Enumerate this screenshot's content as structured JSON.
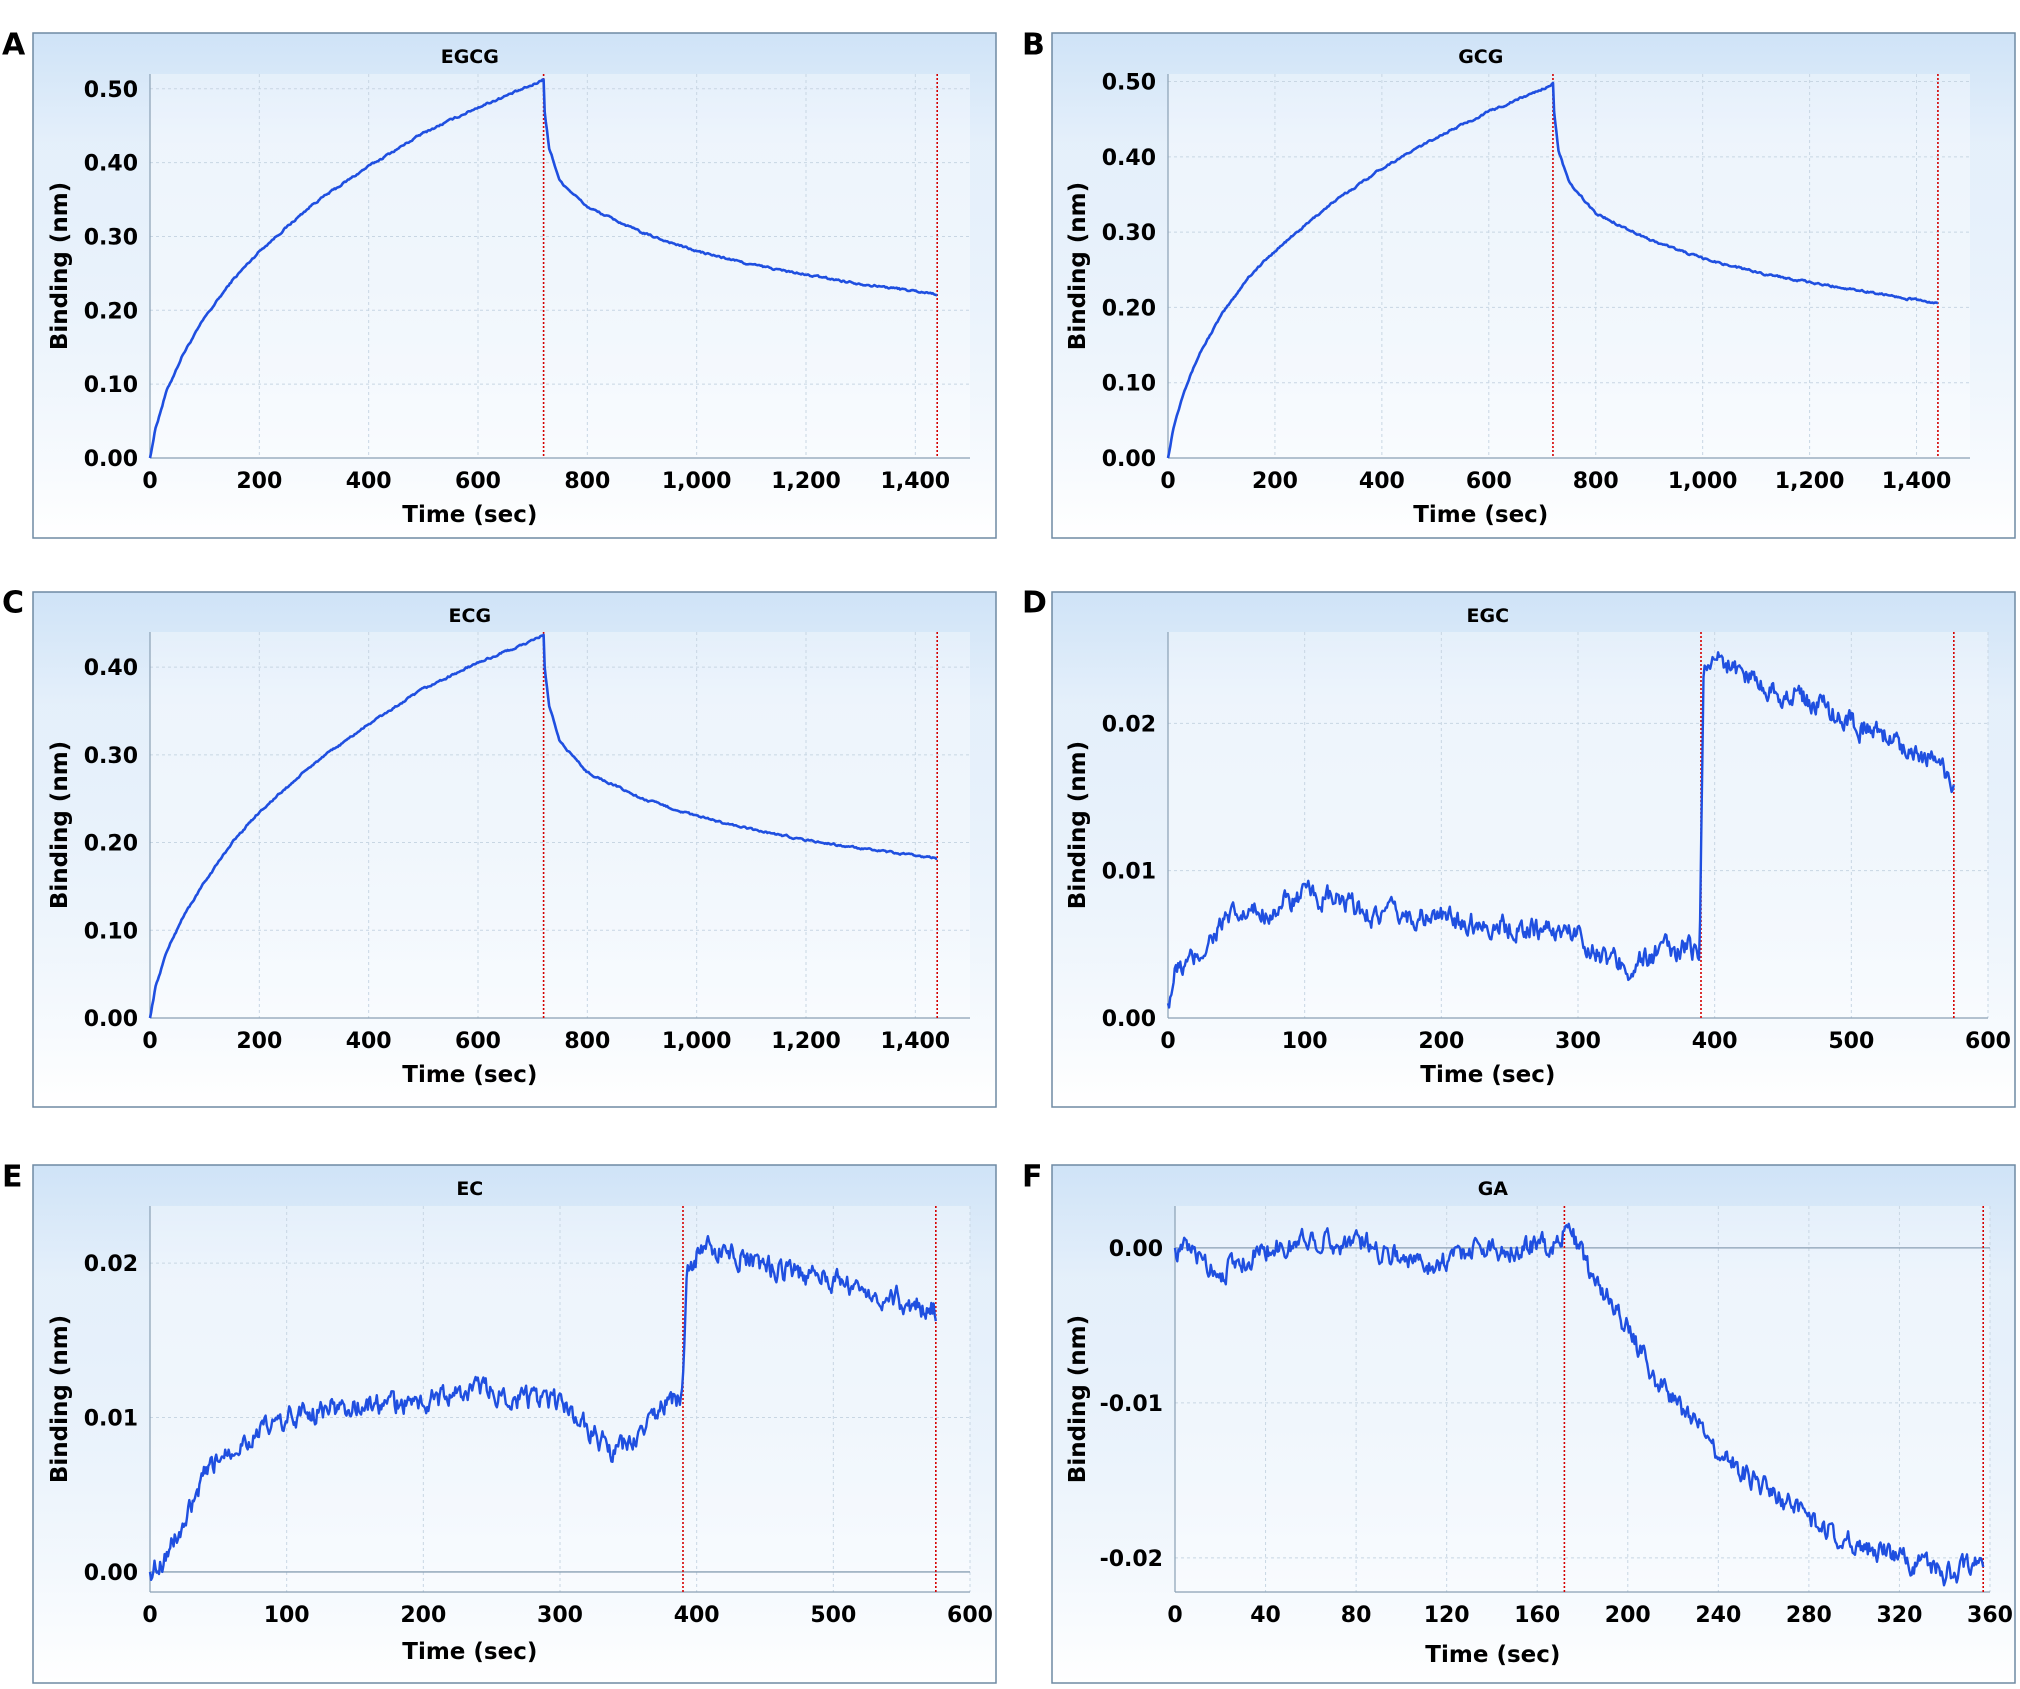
{
  "colors": {
    "series": "#1f4fe0",
    "marker": "#d40000",
    "frame_top": "#cfe3f7",
    "frame_bottom": "#ffffff",
    "frame_border": "#6f8aa3",
    "grid": "#c8d6e3",
    "zero_line": "#8aa0b4"
  },
  "chart_data": [
    {
      "panel": "A",
      "type": "line",
      "title": "EGCG",
      "xlabel": "Time (sec)",
      "ylabel": "Binding (nm)",
      "xlim": [
        0,
        1500
      ],
      "ylim": [
        0,
        0.52
      ],
      "xticks": [
        0,
        200,
        400,
        600,
        800,
        1000,
        1200,
        1400
      ],
      "xtick_labels": [
        "0",
        "200",
        "400",
        "600",
        "800",
        "1,000",
        "1,200",
        "1,400"
      ],
      "yticks": [
        0,
        0.1,
        0.2,
        0.3,
        0.4,
        0.5
      ],
      "ytick_labels": [
        "0.00",
        "0.10",
        "0.20",
        "0.30",
        "0.40",
        "0.50"
      ],
      "markers": [
        720,
        1440
      ],
      "series": [
        {
          "x": [
            0,
            10,
            30,
            60,
            100,
            150,
            200,
            300,
            400,
            500,
            600,
            700,
            720,
            722,
            730,
            750,
            800,
            900,
            1000,
            1100,
            1200,
            1300,
            1440
          ],
          "values": [
            0,
            0.04,
            0.09,
            0.14,
            0.19,
            0.24,
            0.28,
            0.345,
            0.395,
            0.44,
            0.475,
            0.505,
            0.513,
            0.47,
            0.42,
            0.375,
            0.34,
            0.305,
            0.28,
            0.262,
            0.248,
            0.236,
            0.222
          ]
        }
      ]
    },
    {
      "panel": "B",
      "type": "line",
      "title": "GCG",
      "xlabel": "Time (sec)",
      "ylabel": "Binding (nm)",
      "xlim": [
        0,
        1500
      ],
      "ylim": [
        0,
        0.51
      ],
      "xticks": [
        0,
        200,
        400,
        600,
        800,
        1000,
        1200,
        1400
      ],
      "xtick_labels": [
        "0",
        "200",
        "400",
        "600",
        "800",
        "1,000",
        "1,200",
        "1,400"
      ],
      "yticks": [
        0,
        0.1,
        0.2,
        0.3,
        0.4,
        0.5
      ],
      "ytick_labels": [
        "0.00",
        "0.10",
        "0.20",
        "0.30",
        "0.40",
        "0.50"
      ],
      "markers": [
        720,
        1440
      ],
      "series": [
        {
          "x": [
            0,
            10,
            30,
            60,
            100,
            150,
            200,
            300,
            400,
            500,
            600,
            700,
            720,
            722,
            730,
            750,
            800,
            900,
            1000,
            1100,
            1200,
            1300,
            1440
          ],
          "values": [
            0,
            0.04,
            0.09,
            0.14,
            0.19,
            0.24,
            0.275,
            0.335,
            0.385,
            0.425,
            0.46,
            0.49,
            0.497,
            0.46,
            0.41,
            0.365,
            0.325,
            0.29,
            0.265,
            0.247,
            0.233,
            0.222,
            0.205
          ]
        }
      ]
    },
    {
      "panel": "C",
      "type": "line",
      "title": "ECG",
      "xlabel": "Time (sec)",
      "ylabel": "Binding (nm)",
      "xlim": [
        0,
        1500
      ],
      "ylim": [
        0,
        0.44
      ],
      "xticks": [
        0,
        200,
        400,
        600,
        800,
        1000,
        1200,
        1400
      ],
      "xtick_labels": [
        "0",
        "200",
        "400",
        "600",
        "800",
        "1,000",
        "1,200",
        "1,400"
      ],
      "yticks": [
        0,
        0.1,
        0.2,
        0.3,
        0.4
      ],
      "ytick_labels": [
        "0.00",
        "0.10",
        "0.20",
        "0.30",
        "0.40"
      ],
      "markers": [
        720,
        1440
      ],
      "series": [
        {
          "x": [
            0,
            10,
            30,
            60,
            100,
            150,
            200,
            300,
            400,
            500,
            600,
            700,
            720,
            722,
            730,
            750,
            800,
            900,
            1000,
            1100,
            1200,
            1300,
            1440
          ],
          "values": [
            0,
            0.035,
            0.075,
            0.115,
            0.155,
            0.2,
            0.235,
            0.29,
            0.335,
            0.375,
            0.405,
            0.43,
            0.437,
            0.4,
            0.355,
            0.315,
            0.28,
            0.25,
            0.23,
            0.215,
            0.203,
            0.193,
            0.182
          ]
        }
      ]
    },
    {
      "panel": "D",
      "type": "line",
      "title": "EGC",
      "xlabel": "Time (sec)",
      "ylabel": "Binding (nm)",
      "xlim": [
        0,
        600
      ],
      "ylim": [
        0,
        0.0262
      ],
      "xticks": [
        0,
        100,
        200,
        300,
        400,
        500,
        600
      ],
      "xtick_labels": [
        "0",
        "100",
        "200",
        "300",
        "400",
        "500",
        "600"
      ],
      "yticks": [
        0,
        0.01,
        0.02
      ],
      "ytick_labels": [
        "0.00",
        "0.01",
        "0.02"
      ],
      "markers": [
        390,
        575
      ],
      "series": [
        {
          "x": [
            0,
            5,
            20,
            40,
            60,
            80,
            100,
            120,
            150,
            200,
            250,
            300,
            320,
            340,
            360,
            380,
            389,
            390,
            392,
            400,
            420,
            450,
            480,
            500,
            530,
            560,
            575
          ],
          "values": [
            0.001,
            0.003,
            0.004,
            0.0065,
            0.007,
            0.0075,
            0.0083,
            0.008,
            0.007,
            0.0068,
            0.0062,
            0.0058,
            0.004,
            0.0035,
            0.0045,
            0.0047,
            0.0045,
            0.012,
            0.024,
            0.0245,
            0.0235,
            0.022,
            0.0212,
            0.02,
            0.019,
            0.0175,
            0.0155
          ]
        }
      ]
    },
    {
      "panel": "E",
      "type": "line",
      "title": "EC",
      "xlabel": "Time (sec)",
      "ylabel": "Binding (nm)",
      "xlim": [
        0,
        600
      ],
      "ylim": [
        -0.0013,
        0.0237
      ],
      "xticks": [
        0,
        100,
        200,
        300,
        400,
        500,
        600
      ],
      "xtick_labels": [
        "0",
        "100",
        "200",
        "300",
        "400",
        "500",
        "600"
      ],
      "yticks": [
        0,
        0.01,
        0.02
      ],
      "ytick_labels": [
        "0.00",
        "0.01",
        "0.02"
      ],
      "markers": [
        390,
        575
      ],
      "series": [
        {
          "x": [
            0,
            10,
            25,
            40,
            55,
            80,
            110,
            150,
            200,
            240,
            280,
            300,
            320,
            340,
            360,
            380,
            389,
            390,
            393,
            400,
            420,
            450,
            480,
            510,
            540,
            575
          ],
          "values": [
            0,
            0.001,
            0.003,
            0.006,
            0.008,
            0.009,
            0.0103,
            0.0107,
            0.011,
            0.0118,
            0.0112,
            0.0108,
            0.0095,
            0.0075,
            0.009,
            0.0112,
            0.0112,
            0.013,
            0.019,
            0.0205,
            0.021,
            0.0198,
            0.0192,
            0.0188,
            0.0178,
            0.017
          ]
        }
      ]
    },
    {
      "panel": "F",
      "type": "line",
      "title": "GA",
      "xlabel": "Time (sec)",
      "ylabel": "Binding (nm)",
      "xlim": [
        0,
        360
      ],
      "ylim": [
        -0.0222,
        0.0027
      ],
      "xticks": [
        0,
        40,
        80,
        120,
        160,
        200,
        240,
        280,
        320,
        360
      ],
      "xtick_labels": [
        "0",
        "40",
        "80",
        "120",
        "160",
        "200",
        "240",
        "280",
        "320",
        "360"
      ],
      "yticks": [
        -0.02,
        -0.01,
        0
      ],
      "ytick_labels": [
        "-0.02",
        "-0.01",
        "0.00"
      ],
      "markers": [
        172,
        357
      ],
      "series": [
        {
          "x": [
            0,
            10,
            20,
            30,
            40,
            50,
            60,
            70,
            80,
            90,
            100,
            110,
            120,
            130,
            140,
            150,
            160,
            170,
            172,
            178,
            185,
            195,
            205,
            215,
            225,
            240,
            260,
            280,
            300,
            320,
            340,
            357
          ],
          "values": [
            0,
            -0.0005,
            -0.0015,
            -0.0008,
            0,
            0,
            0.0008,
            0.0003,
            0.0005,
            0,
            -0.0005,
            -0.001,
            -0.0008,
            0,
            0,
            0,
            0.0002,
            0,
            0.0018,
            0,
            -0.002,
            -0.004,
            -0.0065,
            -0.009,
            -0.0105,
            -0.013,
            -0.0155,
            -0.0175,
            -0.019,
            -0.02,
            -0.021,
            -0.0205
          ]
        }
      ]
    }
  ]
}
